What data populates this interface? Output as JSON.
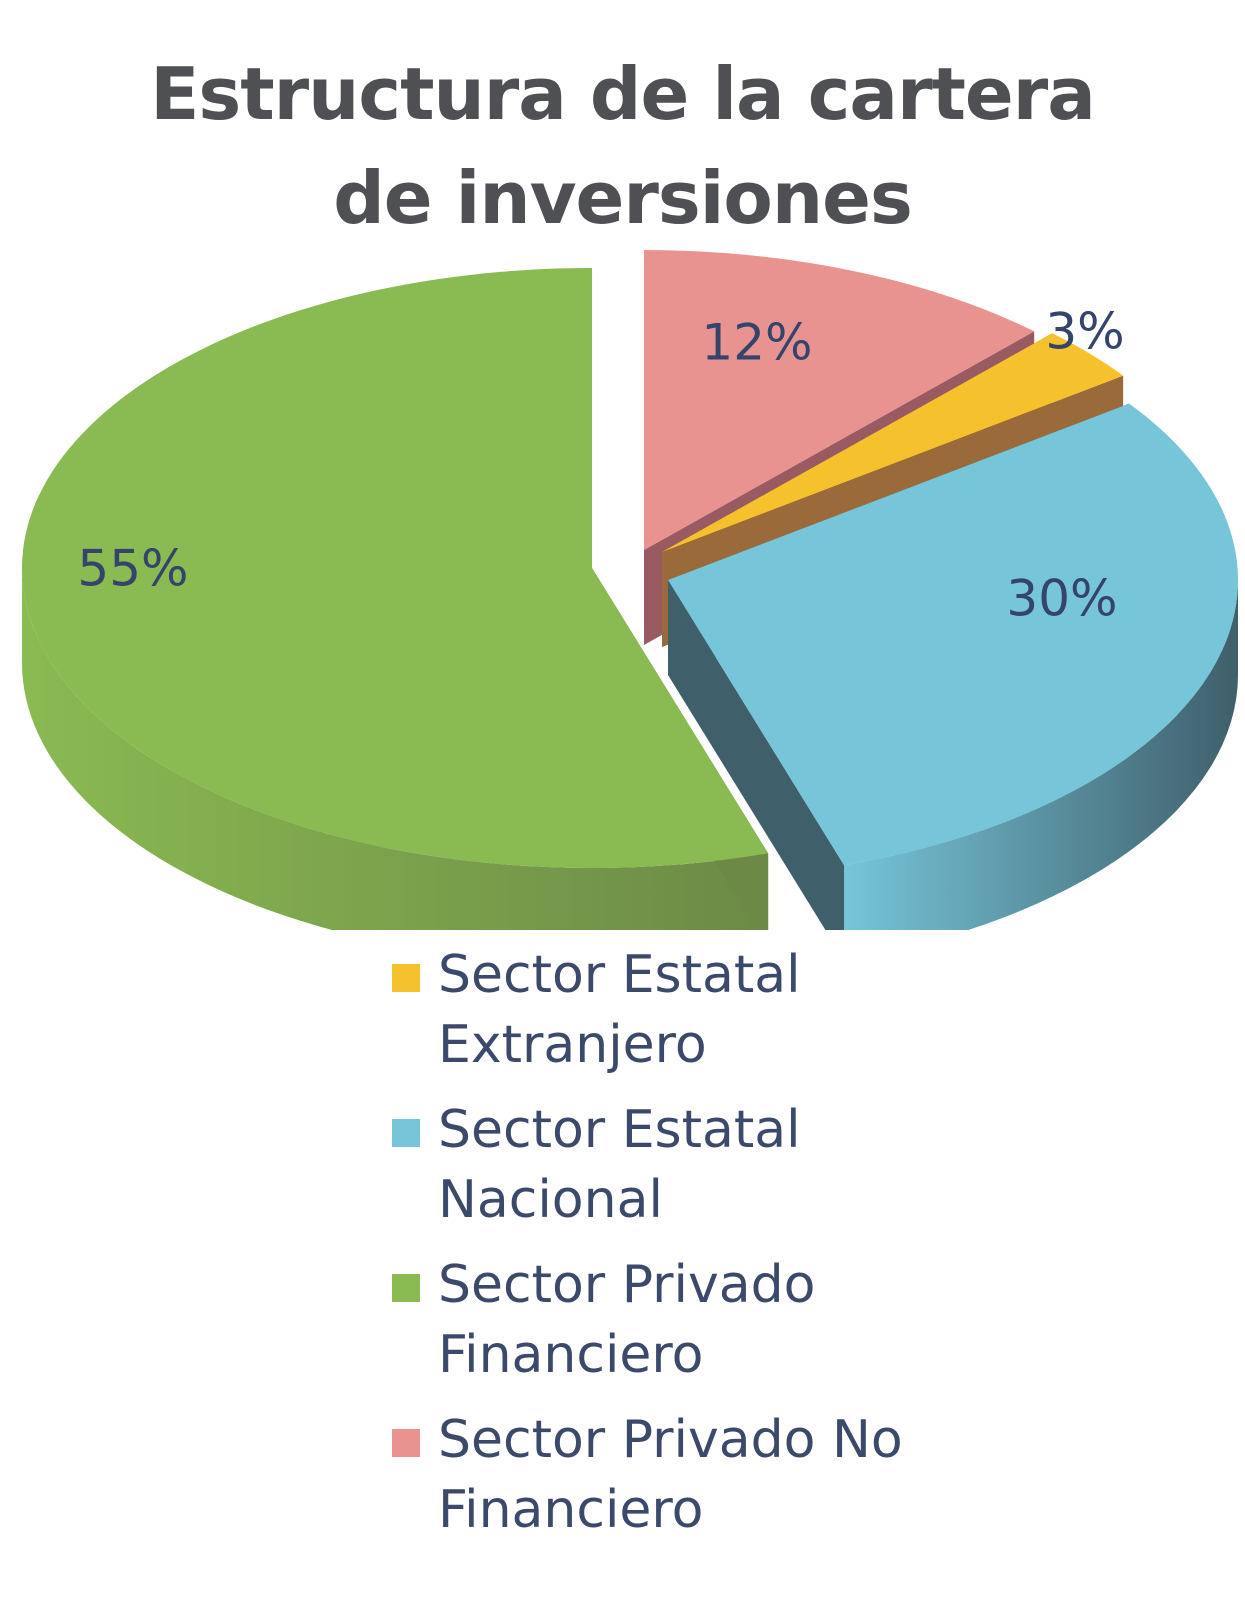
{
  "chart_data": {
    "type": "pie",
    "title_lines": [
      "Estructura de la cartera",
      "de inversiones"
    ],
    "slices": [
      {
        "name": "Sector Estatal Extranjero",
        "value": 3,
        "label": "3%",
        "color": "#f5c12d",
        "side_color": "#9a6a3a"
      },
      {
        "name": "Sector Estatal Nacional",
        "value": 30,
        "label": "30%",
        "color": "#76c5d9",
        "side_color": "#3f5f6a"
      },
      {
        "name": "Sector Privado Financiero",
        "value": 55,
        "label": "55%",
        "color": "#8aba52",
        "side_color": "#6c8a46"
      },
      {
        "name": "Sector Privado No Financiero",
        "value": 12,
        "label": "12%",
        "color": "#e8938f",
        "side_color": "#9a5a62"
      }
    ],
    "legend": {
      "placement": "bottom",
      "items": [
        {
          "line1": "Sector Estatal",
          "line2": "Extranjero",
          "color": "#f5c12d"
        },
        {
          "line1": "Sector Estatal",
          "line2": "Nacional",
          "color": "#76c5d9"
        },
        {
          "line1": "Sector Privado",
          "line2": "Financiero",
          "color": "#8aba52"
        },
        {
          "line1": "Sector Privado No",
          "line2": "Financiero",
          "color": "#e8938f"
        }
      ]
    }
  }
}
